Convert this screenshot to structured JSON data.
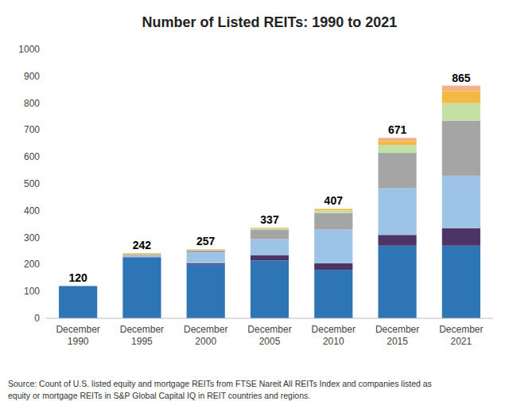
{
  "chart_data": {
    "type": "bar",
    "stacked": true,
    "grid": false,
    "title": "Number of Listed REITs: 1990 to 2021",
    "categories": [
      "December\n1990",
      "December\n1995",
      "December\n2000",
      "December\n2005",
      "December\n2010",
      "December\n2015",
      "December\n2021"
    ],
    "series": [
      {
        "color": "#2E75B6",
        "values": [
          120,
          225,
          200,
          215,
          180,
          270,
          270
        ]
      },
      {
        "color": "#4B3566",
        "values": [
          0,
          2,
          5,
          20,
          25,
          40,
          65
        ]
      },
      {
        "color": "#9DC3E6",
        "values": [
          0,
          10,
          40,
          60,
          125,
          175,
          195
        ]
      },
      {
        "color": "#A5A5A5",
        "values": [
          0,
          0,
          8,
          35,
          62,
          130,
          205
        ]
      },
      {
        "color": "#C5E0A5",
        "values": [
          0,
          0,
          2,
          5,
          10,
          30,
          65
        ]
      },
      {
        "color": "#F4B942",
        "values": [
          0,
          5,
          2,
          2,
          5,
          14,
          45
        ]
      },
      {
        "color": "#F4B183",
        "values": [
          0,
          0,
          0,
          0,
          0,
          12,
          20
        ]
      }
    ],
    "totals": [
      120,
      242,
      257,
      337,
      407,
      671,
      865
    ],
    "ylim": [
      0,
      1000
    ],
    "yticks": [
      0,
      100,
      200,
      300,
      400,
      500,
      600,
      700,
      800,
      900,
      1000
    ],
    "source": "Source: Count of U.S. listed equity and mortgage REITs from FTSE Nareit All REITs Index and companies listed as\nequity or mortgage REITs in S&P Global Capital IQ in REIT countries and regions."
  }
}
